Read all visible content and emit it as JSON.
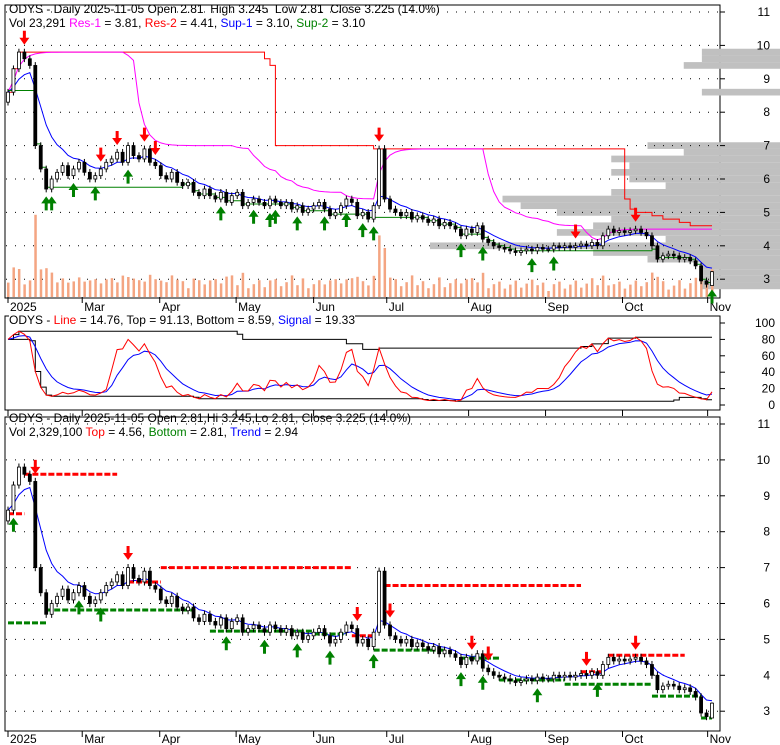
{
  "ticker": "ODYS",
  "colors": {
    "res1": "#ff00ff",
    "res2": "#ff0000",
    "sup1": "#0000ff",
    "sup2": "#008000",
    "volume": "#f4a582",
    "profile": "#c0c0c0",
    "up_arrow": "#008000",
    "down_arrow": "#ff0000"
  },
  "top_panel": {
    "title": "ODYS - Daily 2025-11-05 Open 2.81  High 3.245  Low 2.81  Close 3.225 (14.0%)",
    "vol": "Vol 23,291 ",
    "res1_label": "Res-1",
    "res1_value": " = 3.81, ",
    "res2_label": "Res-2",
    "res2_value": " = 4.41, ",
    "sup1_label": "Sup-1",
    "sup1_value": " = 3.10, ",
    "sup2_label": "Sup-2",
    "sup2_value": " = 3.10",
    "y_ticks": [
      "11",
      "10",
      "9",
      "8",
      "7",
      "6",
      "5",
      "4",
      "3"
    ]
  },
  "middle_panel": {
    "prefix": "ODYS - ",
    "line_label": "Line",
    "line_value": " = 14.76, Top = 91.13, Bottom = 8.59, ",
    "signal_label": "Signal",
    "signal_value": " = 19.33",
    "y_ticks": [
      "100",
      "80",
      "60",
      "40",
      "20",
      "0"
    ]
  },
  "bottom_panel": {
    "title": "ODYS - Daily 2025-11-05 Open 2.81,Hi 3.245,Lo 2.81, Close 3.225 (14.0%)",
    "vol": "Vol 2,329,100 ",
    "top_label": "Top",
    "top_value": " = 4.56, ",
    "bottom_label": "Bottom",
    "bottom_value": " = 2.81, ",
    "trend_label": "Trend",
    "trend_value": " = 2.94",
    "y_ticks": [
      "11",
      "10",
      "9",
      "8",
      "7",
      "6",
      "5",
      "4",
      "3"
    ]
  },
  "x_labels": [
    "2025",
    "Mar",
    "Apr",
    "May",
    "Jun",
    "Jul",
    "Aug",
    "Sep",
    "Oct",
    "Nov"
  ],
  "chart_data": {
    "type": "candlestick",
    "title": "ODYS - Daily 2025-11-05",
    "last_bar": {
      "open": 2.81,
      "high": 3.245,
      "low": 2.81,
      "close": 3.225
    },
    "closes": [
      8.6,
      9.3,
      9.8,
      9.6,
      9.4,
      7.0,
      6.3,
      5.7,
      6.0,
      6.2,
      6.4,
      6.1,
      6.3,
      6.5,
      6.2,
      6.0,
      6.1,
      6.3,
      6.5,
      6.6,
      6.8,
      6.5,
      7.0,
      6.7,
      6.6,
      6.9,
      6.5,
      6.4,
      6.1,
      6.0,
      6.2,
      5.9,
      5.8,
      5.9,
      5.6,
      5.5,
      5.7,
      5.5,
      5.4,
      5.6,
      5.3,
      5.5,
      5.6,
      5.2,
      5.3,
      5.4,
      5.3,
      5.2,
      5.4,
      5.3,
      5.2,
      5.3,
      5.1,
      5.2,
      5.0,
      5.1,
      5.2,
      5.3,
      5.1,
      4.9,
      5.0,
      5.2,
      5.4,
      5.3,
      4.9,
      5.0,
      4.8,
      5.2,
      6.9,
      5.4,
      5.1,
      5.0,
      4.9,
      5.0,
      4.8,
      4.9,
      4.8,
      4.7,
      4.8,
      4.6,
      4.7,
      4.6,
      4.5,
      4.3,
      4.5,
      4.4,
      4.6,
      4.2,
      4.1,
      4.0,
      3.95,
      3.9,
      3.85,
      3.8,
      3.85,
      3.9,
      3.85,
      3.95,
      3.9,
      3.9,
      4.0,
      3.95,
      4.0,
      3.95,
      4.0,
      4.05,
      4.0,
      4.1,
      4.0,
      4.3,
      4.5,
      4.4,
      4.45,
      4.4,
      4.45,
      4.5,
      4.4,
      4.3,
      4.0,
      3.6,
      3.7,
      3.75,
      3.7,
      3.6,
      3.65,
      3.55,
      3.4,
      2.95,
      2.85,
      3.225
    ],
    "price_range": [
      2.5,
      11.2
    ],
    "oscillator_range": [
      0,
      100
    ],
    "top_arrows": {
      "down": [
        3,
        17,
        20,
        25,
        27,
        68,
        104,
        115
      ],
      "up": [
        7,
        8,
        12,
        16,
        22,
        39,
        45,
        48,
        49,
        53,
        58,
        62,
        65,
        67,
        83,
        87,
        96,
        100,
        129
      ]
    },
    "bottom_arrows": {
      "down": [
        5,
        22,
        64,
        70,
        85,
        88,
        106,
        115
      ],
      "up": [
        1,
        13,
        17,
        40,
        47,
        53,
        59,
        67,
        83,
        87,
        97,
        108
      ]
    },
    "resistance_levels": [
      {
        "price": 8.5,
        "from": 0,
        "to": 3
      },
      {
        "price": 9.6,
        "from": 3,
        "to": 20
      },
      {
        "price": 6.6,
        "from": 22,
        "to": 28
      },
      {
        "price": 7.0,
        "from": 28,
        "to": 63
      },
      {
        "price": 5.1,
        "from": 63,
        "to": 67
      },
      {
        "price": 6.5,
        "from": 69,
        "to": 105
      },
      {
        "price": 4.1,
        "from": 105,
        "to": 109
      },
      {
        "price": 4.56,
        "from": 110,
        "to": 124
      }
    ],
    "support_levels": [
      {
        "price": 5.46,
        "from": 0,
        "to": 7
      },
      {
        "price": 5.82,
        "from": 7,
        "to": 34
      },
      {
        "price": 5.23,
        "from": 37,
        "to": 56
      },
      {
        "price": 5.15,
        "from": 56,
        "to": 62
      },
      {
        "price": 4.7,
        "from": 67,
        "to": 80
      },
      {
        "price": 4.48,
        "from": 83,
        "to": 90
      },
      {
        "price": 3.87,
        "from": 90,
        "to": 102
      },
      {
        "price": 3.75,
        "from": 102,
        "to": 118
      },
      {
        "price": 3.42,
        "from": 118,
        "to": 127
      },
      {
        "price": 2.81,
        "from": 127,
        "to": 129
      }
    ]
  }
}
